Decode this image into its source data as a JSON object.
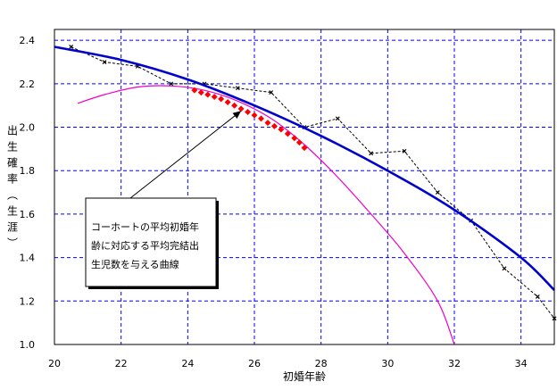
{
  "chart_data": {
    "type": "line",
    "xlabel": "初婚年齢",
    "ylabel": "出生確率（生涯）",
    "xlim": [
      20,
      35
    ],
    "ylim": [
      1.0,
      2.45
    ],
    "grid": true,
    "x_ticks": [
      "20",
      "22",
      "24",
      "26",
      "28",
      "30",
      "32",
      "34"
    ],
    "y_ticks": [
      "1.0",
      "1.2",
      "1.4",
      "1.6",
      "1.8",
      "2.0",
      "2.2",
      "2.4"
    ],
    "annotation": {
      "lines": [
        "コーホートの平均初婚年",
        "齢に対応する平均完結出",
        "生児数を与える曲線"
      ],
      "arrow_to": [
        25.6,
        2.075
      ]
    },
    "series": [
      {
        "kind": "dashed-markers",
        "color": "#000000",
        "points": [
          [
            20.5,
            2.37
          ],
          [
            21.5,
            2.3
          ],
          [
            22.5,
            2.28
          ],
          [
            23.5,
            2.2
          ],
          [
            24.5,
            2.2
          ],
          [
            25.5,
            2.18
          ],
          [
            26.5,
            2.16
          ],
          [
            27.5,
            2.0
          ],
          [
            28.5,
            2.04
          ],
          [
            29.5,
            1.88
          ],
          [
            30.5,
            1.89
          ],
          [
            31.5,
            1.7
          ],
          [
            32.5,
            1.57
          ],
          [
            33.5,
            1.35
          ],
          [
            34.5,
            1.22
          ],
          [
            35.0,
            1.12
          ]
        ]
      },
      {
        "kind": "curve",
        "color": "#0000cc",
        "points": [
          [
            20,
            2.37
          ],
          [
            22,
            2.31
          ],
          [
            24,
            2.22
          ],
          [
            26,
            2.1
          ],
          [
            28,
            1.96
          ],
          [
            30,
            1.8
          ],
          [
            32,
            1.62
          ],
          [
            34,
            1.4
          ],
          [
            35,
            1.25
          ]
        ]
      },
      {
        "kind": "curve",
        "color": "#ee00cc",
        "points": [
          [
            20.7,
            2.11
          ],
          [
            21.5,
            2.15
          ],
          [
            22.5,
            2.185
          ],
          [
            23.5,
            2.19
          ],
          [
            24.5,
            2.17
          ],
          [
            25.5,
            2.12
          ],
          [
            26.5,
            2.04
          ],
          [
            27.5,
            1.92
          ],
          [
            28.5,
            1.77
          ],
          [
            29.5,
            1.6
          ],
          [
            30.5,
            1.42
          ],
          [
            31.5,
            1.2
          ],
          [
            32.0,
            1.0
          ]
        ]
      },
      {
        "kind": "markers",
        "color": "#ff0000",
        "points": [
          [
            24.2,
            2.17
          ],
          [
            24.4,
            2.16
          ],
          [
            24.6,
            2.15
          ],
          [
            24.8,
            2.14
          ],
          [
            25.0,
            2.13
          ],
          [
            25.2,
            2.115
          ],
          [
            25.4,
            2.1
          ],
          [
            25.6,
            2.085
          ],
          [
            25.8,
            2.07
          ],
          [
            26.0,
            2.055
          ],
          [
            26.2,
            2.04
          ],
          [
            26.4,
            2.02
          ],
          [
            26.6,
            2.005
          ],
          [
            26.8,
            1.99
          ],
          [
            27.0,
            1.97
          ],
          [
            27.2,
            1.95
          ],
          [
            27.35,
            1.93
          ],
          [
            27.5,
            1.905
          ]
        ]
      }
    ]
  }
}
